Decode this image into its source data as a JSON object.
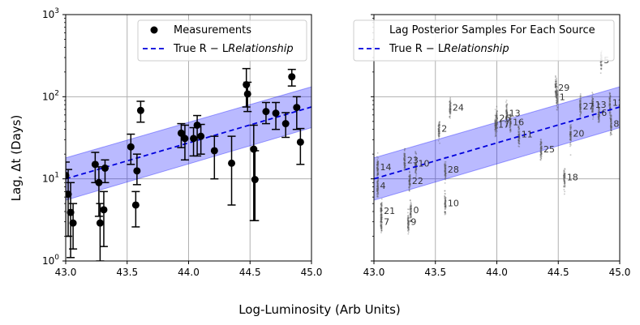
{
  "figure": {
    "xlabel": "Log-Luminosity (Arb Units)",
    "ylabel": "Lag, Δt (Days)"
  },
  "colors": {
    "band": "#0000ff",
    "true_line": "#0000dd",
    "points": "#000000",
    "grid": "#b0b0b0",
    "samples": "#555555",
    "source_labels": "#333333"
  },
  "chart_data": [
    {
      "type": "scatter",
      "panel": "left",
      "title": "",
      "xlabel": "",
      "ylabel": "Lag, Δt (Days)",
      "xlim": [
        43.0,
        45.0
      ],
      "ylim": [
        1,
        1000
      ],
      "yscale": "log",
      "grid": true,
      "legend_position": "top-right",
      "x_ticks": [
        {
          "value": 43.0,
          "label": "43.0"
        },
        {
          "value": 43.5,
          "label": "43.5"
        },
        {
          "value": 44.0,
          "label": "44.0"
        },
        {
          "value": 44.5,
          "label": "44.5"
        },
        {
          "value": 45.0,
          "label": "45.0"
        }
      ],
      "y_ticks": [
        {
          "value": 1,
          "base": "10",
          "exp": "0"
        },
        {
          "value": 10,
          "base": "10",
          "exp": "1"
        },
        {
          "value": 100,
          "base": "10",
          "exp": "2"
        },
        {
          "value": 1000,
          "base": "10",
          "exp": "3"
        }
      ],
      "legend": [
        {
          "kind": "marker",
          "label": "Measurements",
          "label_italic": ""
        },
        {
          "kind": "dashed-line",
          "label": "True R − L",
          "label_italic": "Relationship"
        }
      ],
      "relationship": {
        "x": [
          43.0,
          45.0
        ],
        "y": [
          10.0,
          75.0
        ],
        "band_lower": [
          5.5,
          42.0
        ],
        "band_upper": [
          18.0,
          132.0
        ]
      },
      "points": [
        {
          "x": 43.0,
          "y": 11.0,
          "ylow": 2.0,
          "yhigh": 16.0
        },
        {
          "x": 43.02,
          "y": 6.5,
          "ylow": 2.0,
          "yhigh": 13.0
        },
        {
          "x": 43.04,
          "y": 3.9,
          "ylow": 1.1,
          "yhigh": 9.0
        },
        {
          "x": 43.06,
          "y": 2.9,
          "ylow": 1.4,
          "yhigh": 5.0
        },
        {
          "x": 43.24,
          "y": 15.0,
          "ylow": 9.0,
          "yhigh": 21.0
        },
        {
          "x": 43.27,
          "y": 9.0,
          "ylow": 3.5,
          "yhigh": 14.0
        },
        {
          "x": 43.28,
          "y": 2.9,
          "ylow": 1.0,
          "yhigh": 5.0
        },
        {
          "x": 43.31,
          "y": 4.2,
          "ylow": 1.5,
          "yhigh": 7.0
        },
        {
          "x": 43.32,
          "y": 13.5,
          "ylow": 9.0,
          "yhigh": 17.0
        },
        {
          "x": 43.53,
          "y": 24.5,
          "ylow": 15.0,
          "yhigh": 35.0
        },
        {
          "x": 43.57,
          "y": 4.8,
          "ylow": 2.6,
          "yhigh": 7.0
        },
        {
          "x": 43.58,
          "y": 12.5,
          "ylow": 8.5,
          "yhigh": 20.0
        },
        {
          "x": 43.61,
          "y": 68.0,
          "ylow": 49.0,
          "yhigh": 88.0
        },
        {
          "x": 43.94,
          "y": 36.0,
          "ylow": 24.0,
          "yhigh": 47.0
        },
        {
          "x": 43.97,
          "y": 31.0,
          "ylow": 17.0,
          "yhigh": 45.0
        },
        {
          "x": 44.04,
          "y": 31.0,
          "ylow": 19.0,
          "yhigh": 42.0
        },
        {
          "x": 44.07,
          "y": 45.0,
          "ylow": 19.0,
          "yhigh": 59.0
        },
        {
          "x": 44.1,
          "y": 33.0,
          "ylow": 20.0,
          "yhigh": 46.0
        },
        {
          "x": 44.21,
          "y": 22.0,
          "ylow": 10.0,
          "yhigh": 33.0
        },
        {
          "x": 44.35,
          "y": 15.5,
          "ylow": 4.8,
          "yhigh": 33.0
        },
        {
          "x": 44.47,
          "y": 140.0,
          "ylow": 75.0,
          "yhigh": 220.0
        },
        {
          "x": 44.48,
          "y": 108.0,
          "ylow": 66.0,
          "yhigh": 150.0
        },
        {
          "x": 44.53,
          "y": 23.0,
          "ylow": 3.1,
          "yhigh": 45.0
        },
        {
          "x": 44.54,
          "y": 9.8,
          "ylow": 3.1,
          "yhigh": 22.0
        },
        {
          "x": 44.63,
          "y": 66.0,
          "ylow": 47.0,
          "yhigh": 85.0
        },
        {
          "x": 44.71,
          "y": 63.0,
          "ylow": 40.0,
          "yhigh": 85.0
        },
        {
          "x": 44.79,
          "y": 47.0,
          "ylow": 32.0,
          "yhigh": 64.0
        },
        {
          "x": 44.84,
          "y": 175.0,
          "ylow": 135.0,
          "yhigh": 215.0
        },
        {
          "x": 44.88,
          "y": 74.0,
          "ylow": 40.0,
          "yhigh": 100.0
        },
        {
          "x": 44.91,
          "y": 28.0,
          "ylow": 15.0,
          "yhigh": 41.0
        }
      ]
    },
    {
      "type": "scatter",
      "panel": "right",
      "title": "",
      "xlabel": "",
      "ylabel": "",
      "xlim": [
        43.0,
        45.0
      ],
      "ylim": [
        1,
        1000
      ],
      "yscale": "log",
      "grid": true,
      "legend_position": "top-right",
      "x_ticks": [
        {
          "value": 43.0,
          "label": "43.0"
        },
        {
          "value": 43.5,
          "label": "43.5"
        },
        {
          "value": 44.0,
          "label": "44.0"
        },
        {
          "value": 44.5,
          "label": "44.5"
        },
        {
          "value": 45.0,
          "label": "45.0"
        }
      ],
      "legend": [
        {
          "kind": "none",
          "label": "Lag Posterior Samples For Each Source",
          "label_italic": ""
        },
        {
          "kind": "dashed-line",
          "label": "True R − L",
          "label_italic": "Relationship"
        }
      ],
      "relationship": {
        "x": [
          43.0,
          45.0
        ],
        "y": [
          10.0,
          75.0
        ],
        "band_lower": [
          5.5,
          42.0
        ],
        "band_upper": [
          18.0,
          132.0
        ]
      },
      "sources": [
        {
          "id": "0",
          "x": 43.3,
          "y": 4.2
        },
        {
          "id": "1",
          "x": 44.49,
          "y": 100.0
        },
        {
          "id": "2",
          "x": 43.53,
          "y": 41.0
        },
        {
          "id": "4",
          "x": 43.03,
          "y": 8.3
        },
        {
          "id": "5",
          "x": 44.85,
          "y": 280.0
        },
        {
          "id": "6",
          "x": 44.83,
          "y": 64.0
        },
        {
          "id": "7",
          "x": 43.06,
          "y": 3.0
        },
        {
          "id": "8",
          "x": 44.93,
          "y": 47.0
        },
        {
          "id": "9",
          "x": 43.28,
          "y": 3.0
        },
        {
          "id": "10",
          "x": 43.34,
          "y": 15.5
        },
        {
          "id": "10",
          "x": 43.58,
          "y": 5.1
        },
        {
          "id": "11",
          "x": 44.18,
          "y": 35.0
        },
        {
          "id": "12",
          "x": 44.92,
          "y": 85.0
        },
        {
          "id": "13",
          "x": 44.08,
          "y": 63.0
        },
        {
          "id": "13",
          "x": 44.78,
          "y": 80.0
        },
        {
          "id": "14",
          "x": 43.03,
          "y": 14.0
        },
        {
          "id": "16",
          "x": 44.11,
          "y": 49.0
        },
        {
          "id": "17",
          "x": 43.99,
          "y": 46.0
        },
        {
          "id": "18",
          "x": 44.55,
          "y": 10.5
        },
        {
          "id": "20",
          "x": 44.6,
          "y": 36.0
        },
        {
          "id": "21",
          "x": 43.06,
          "y": 4.1
        },
        {
          "id": "22",
          "x": 43.29,
          "y": 9.5
        },
        {
          "id": "23",
          "x": 43.25,
          "y": 17.0
        },
        {
          "id": "24",
          "x": 43.62,
          "y": 74.0
        },
        {
          "id": "25",
          "x": 44.36,
          "y": 23.0
        },
        {
          "id": "26",
          "x": 44.0,
          "y": 55.0
        },
        {
          "id": "27",
          "x": 44.68,
          "y": 77.0
        },
        {
          "id": "28",
          "x": 43.58,
          "y": 13.0
        },
        {
          "id": "29",
          "x": 44.48,
          "y": 130.0
        }
      ]
    }
  ]
}
